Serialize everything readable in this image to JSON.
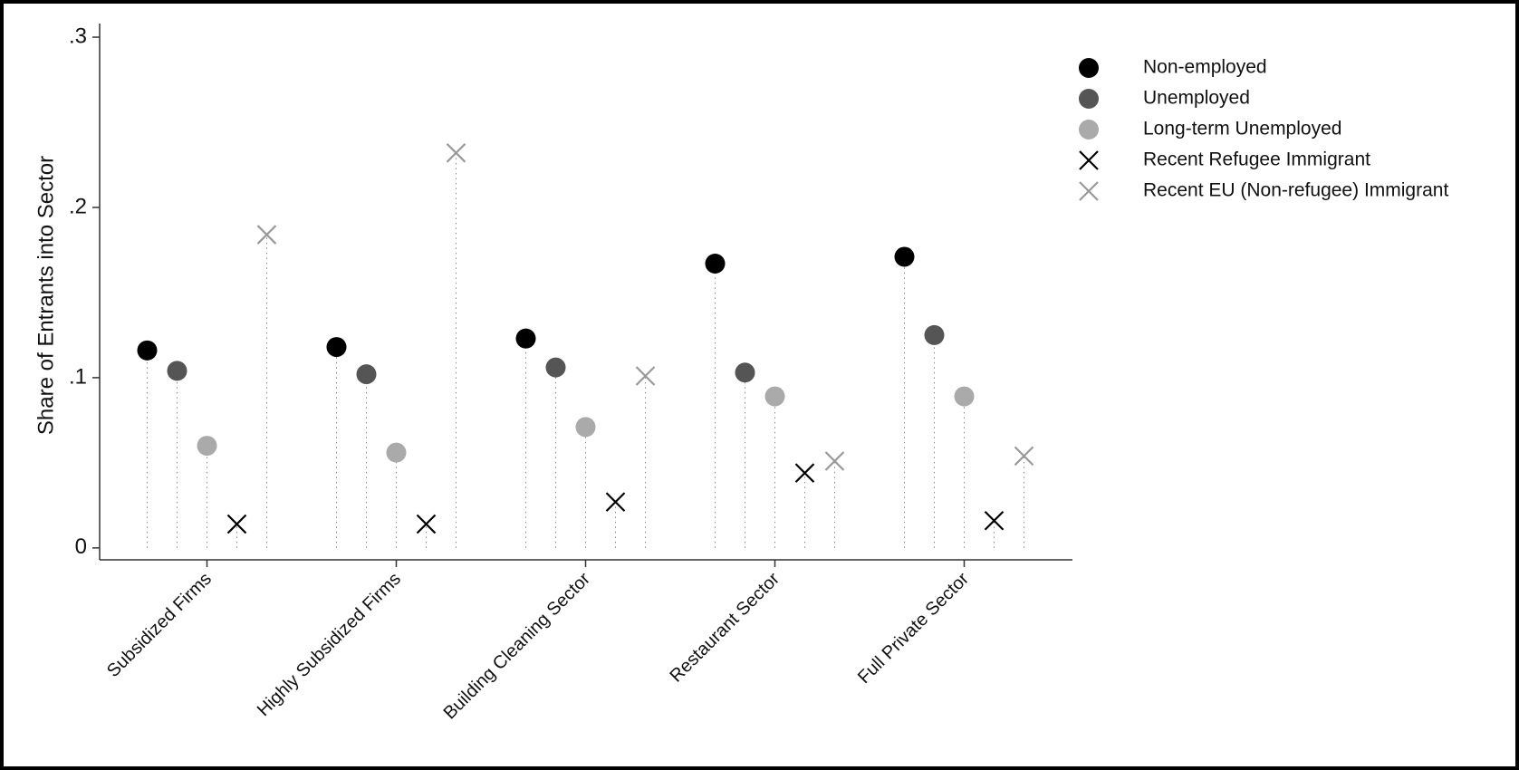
{
  "chart_data": {
    "type": "dot",
    "y_label": "Share of Entrants into Sector",
    "categories": [
      "Subsidized Firms",
      "Highly Subsidized Firms",
      "Building Cleaning Sector",
      "Restaurant Sector",
      "Full Private Sector"
    ],
    "series": [
      {
        "name": "Non-employed",
        "color": "#000000",
        "marker": "circle",
        "values": [
          0.116,
          0.118,
          0.123,
          0.167,
          0.171
        ]
      },
      {
        "name": "Unemployed",
        "color": "#555555",
        "marker": "circle",
        "values": [
          0.104,
          0.102,
          0.106,
          0.103,
          0.125
        ]
      },
      {
        "name": "Long-term Unemployed",
        "color": "#aaaaaa",
        "marker": "circle",
        "values": [
          0.06,
          0.056,
          0.071,
          0.089,
          0.089
        ]
      },
      {
        "name": "Recent Refugee Immigrant",
        "color": "#000000",
        "marker": "x",
        "values": [
          0.014,
          0.014,
          0.027,
          0.044,
          0.016
        ]
      },
      {
        "name": "Recent EU (Non-refugee) Immigrant",
        "color": "#999999",
        "marker": "x",
        "values": [
          0.184,
          0.232,
          0.101,
          0.051,
          0.054
        ]
      }
    ],
    "ylim": [
      -0.007,
      0.308
    ],
    "yticks": [
      0,
      {
        "value": 0.1,
        "label": ".1"
      },
      {
        "value": 0.2,
        "label": ".2"
      },
      {
        "value": 0.3,
        "label": ".3"
      }
    ],
    "legend": "top-right"
  }
}
